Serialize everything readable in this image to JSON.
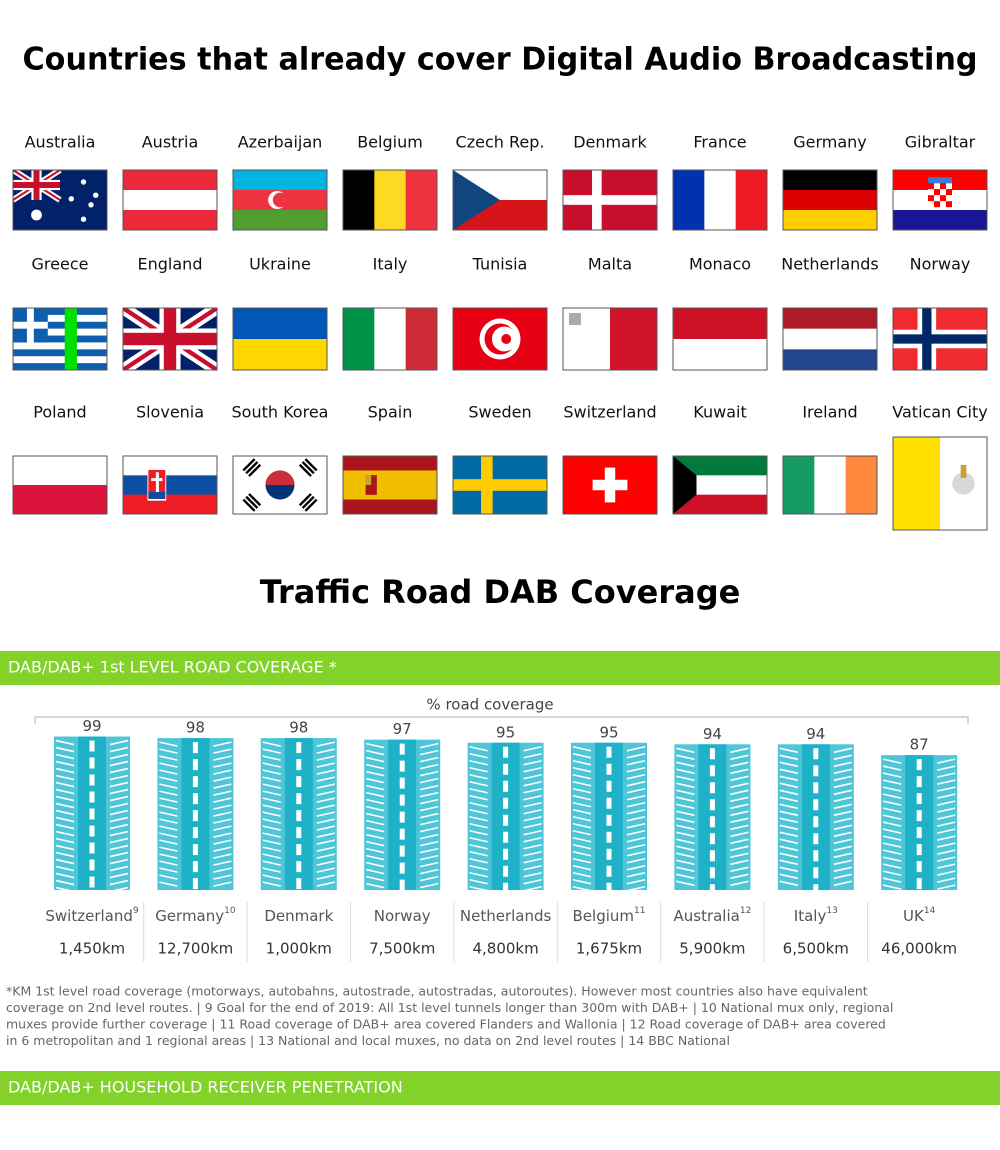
{
  "title": "Countries that already cover Digital Audio Broadcasting",
  "countries": [
    "Australia",
    "Austria",
    "Azerbaijan",
    "Belgium",
    "Czech Rep.",
    "Denmark",
    "France",
    "Germany",
    "Gibraltar",
    "Greece",
    "England",
    "Ukraine",
    "Italy",
    "Tunisia",
    "Malta",
    "Monaco",
    "Netherlands",
    "Norway",
    "Poland",
    "Slovenia",
    "South Korea",
    "Spain",
    "Sweden",
    "Switzerland",
    "Kuwait",
    "Ireland",
    "Vatican City"
  ],
  "section_title": "Traffic Road DAB Coverage",
  "banner": "DAB/DAB+ 1st LEVEL ROAD COVERAGE *",
  "chart_data": {
    "type": "bar",
    "title": "% road coverage",
    "categories": [
      "Switzerland",
      "Germany",
      "Denmark",
      "Norway",
      "Netherlands",
      "Belgium",
      "Australia",
      "Italy",
      "UK"
    ],
    "category_superscripts": [
      "9",
      "10",
      null,
      null,
      null,
      "11",
      "12",
      "13",
      "14"
    ],
    "values": [
      99,
      98,
      98,
      97,
      95,
      95,
      94,
      94,
      87
    ],
    "road_lengths": [
      "1,450km",
      "12,700km",
      "1,000km",
      "7,500km",
      "4,800km",
      "1,675km",
      "5,900km",
      "6,500km",
      "46,000km"
    ],
    "color": "#4ec6d8"
  },
  "footnote_lines": [
    "*KM 1st level road coverage (motorways, autobahns, autostrade, autostradas, autoroutes). However most countries also have equivalent",
    "coverage on 2nd level routes.    |  9 Goal for the end of 2019: All 1st level tunnels longer than 300m with DAB+  |  10 National mux only, regional",
    "muxes provide further coverage | 11 Road coverage of DAB+ area covered Flanders and Wallonia |  12 Road coverage of DAB+ area covered",
    "in 6 metropolitan and 1 regional areas |  13 National and local muxes, no data on 2nd level routes |  14 BBC National"
  ],
  "bottom_banner": "DAB/DAB+ HOUSEHOLD RECEIVER PENETRATION"
}
